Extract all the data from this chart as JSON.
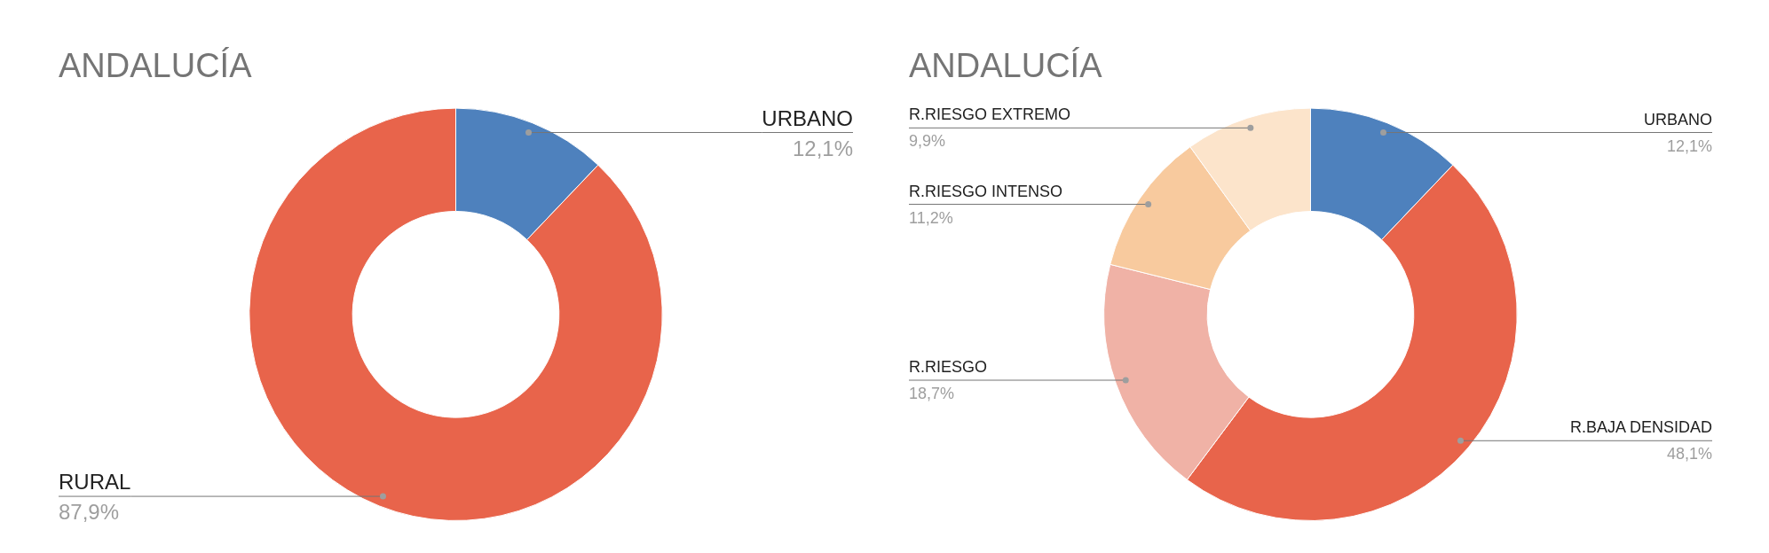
{
  "chart_data": [
    {
      "type": "donut",
      "title": "ANDALUCÍA",
      "categories": [
        "URBANO",
        "RURAL"
      ],
      "values": [
        12.1,
        87.9
      ],
      "colors": [
        "#4e81bd",
        "#e8644b"
      ],
      "value_labels": [
        "12,1%",
        "87,9%"
      ]
    },
    {
      "type": "donut",
      "title": "ANDALUCÍA",
      "categories": [
        "URBANO",
        "R.BAJA DENSIDAD",
        "R.RIESGO",
        "R.RIESGO INTENSO",
        "R.RIESGO EXTREMO"
      ],
      "values": [
        12.1,
        48.1,
        18.7,
        11.2,
        9.9
      ],
      "colors": [
        "#4e81bd",
        "#e8644b",
        "#f0b2a6",
        "#f8ca9e",
        "#fce4cb"
      ],
      "value_labels": [
        "12,1%",
        "48,1%",
        "18,7%",
        "11,2%",
        "9,9%"
      ]
    }
  ]
}
